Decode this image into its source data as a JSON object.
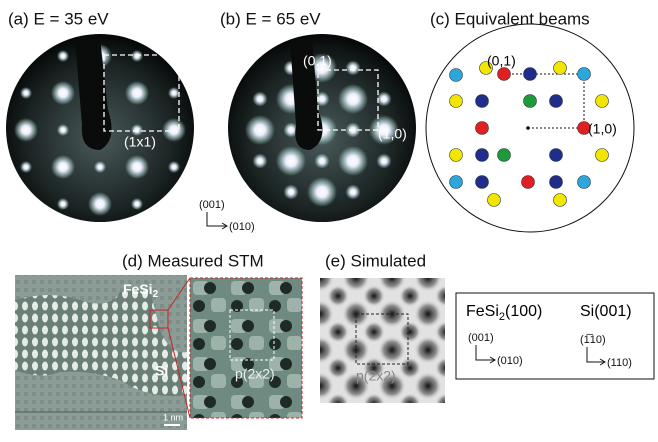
{
  "panel_a": {
    "title": "(a) E = 35 eV",
    "cell": "(1x1)"
  },
  "panel_b": {
    "title": "(b) E = 65 eV",
    "beam_01": "(0,1)",
    "beam_10": "(1,0)"
  },
  "axes": {
    "vertical": "(001)",
    "horizontal": "(010)"
  },
  "panel_c": {
    "title": "(c) Equivalent beams",
    "beam_01": "(0,1)",
    "beam_10": "(1,0)"
  },
  "panel_d": {
    "title": "(d) Measured STM",
    "label_fesi": "FeSi",
    "label_fesi_sub": "2",
    "label_si": "Si",
    "scale": "1 nm",
    "cell": "p(2x2)"
  },
  "panel_e": {
    "title": "(e) Simulated",
    "cell": "p(2x2)"
  },
  "legend": {
    "fesi_name": "FeSi",
    "fesi_sub": "2",
    "fesi_face": "(100)",
    "fesi_vertical": "(001)",
    "fesi_horizontal": "(010)",
    "si_name": "Si(001)",
    "si_vertical": "(1̅10)",
    "si_horizontal": "(110)"
  }
}
